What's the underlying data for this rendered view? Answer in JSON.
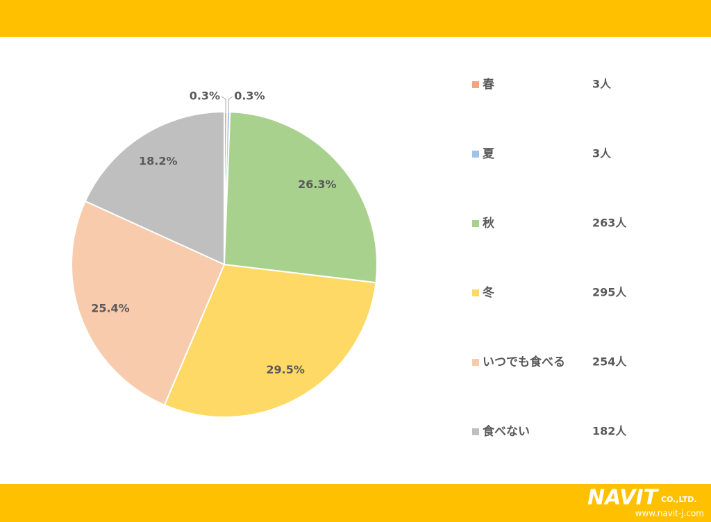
{
  "chart_data": {
    "type": "pie",
    "categories": [
      "春",
      "夏",
      "秋",
      "冬",
      "いつでも食べる",
      "食べない"
    ],
    "values": [
      0.3,
      0.3,
      26.3,
      29.5,
      25.4,
      18.2
    ],
    "value_labels": [
      "0.3%",
      "0.3%",
      "26.3%",
      "29.5%",
      "25.4%",
      "18.2%"
    ],
    "colors": [
      "#f4a582",
      "#9dc3e6",
      "#a9d18e",
      "#ffd966",
      "#f8cbad",
      "#bfbfbf"
    ],
    "legend_values": [
      3,
      3,
      263,
      295,
      254,
      182
    ],
    "legend_value_labels": [
      "3人",
      "3人",
      "263人",
      "295人",
      "254人",
      "182人"
    ]
  },
  "footer": {
    "logo": "NAVIT",
    "company": "CO.,LTD.",
    "url": "www.navit-j.com"
  }
}
